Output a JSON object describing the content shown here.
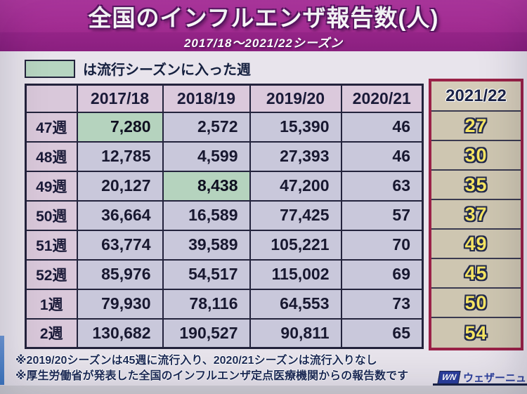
{
  "header": {
    "title": "全国のインフルエンザ報告数(人)",
    "subtitle": "2017/18〜2021/22シーズン"
  },
  "legend": {
    "label": "は流行シーズンに入った週",
    "swatch_color": "#b7d5c1"
  },
  "table": {
    "season_headers": [
      "2017/18",
      "2018/19",
      "2019/20",
      "2020/21"
    ],
    "current_season_header": "2021/22",
    "rows": [
      {
        "week": "47週",
        "values": [
          "7,280",
          "2,572",
          "15,390",
          "46"
        ],
        "current": "27",
        "highlight_col": 0
      },
      {
        "week": "48週",
        "values": [
          "12,785",
          "4,599",
          "27,393",
          "46"
        ],
        "current": "30",
        "highlight_col": null
      },
      {
        "week": "49週",
        "values": [
          "20,127",
          "8,438",
          "47,200",
          "63"
        ],
        "current": "35",
        "highlight_col": 1
      },
      {
        "week": "50週",
        "values": [
          "36,664",
          "16,589",
          "77,425",
          "57"
        ],
        "current": "37",
        "highlight_col": null
      },
      {
        "week": "51週",
        "values": [
          "63,774",
          "39,589",
          "105,221",
          "70"
        ],
        "current": "49",
        "highlight_col": null
      },
      {
        "week": "52週",
        "values": [
          "85,976",
          "54,517",
          "115,002",
          "69"
        ],
        "current": "45",
        "highlight_col": null
      },
      {
        "week": "1週",
        "values": [
          "79,930",
          "78,116",
          "64,553",
          "73"
        ],
        "current": "50",
        "highlight_col": null
      },
      {
        "week": "2週",
        "values": [
          "130,682",
          "190,527",
          "90,811",
          "65"
        ],
        "current": "54",
        "highlight_col": null
      }
    ]
  },
  "footnotes": [
    "※2019/20シーズンは45週に流行入り、2020/21シーズンは流行入りなし",
    "※厚生労働省が発表した全国のインフルエンザ定点医療機関からの報告数です"
  ],
  "logo": {
    "mark": "WN",
    "name": "ウェザーニュース"
  },
  "colors": {
    "title_magenta": "#a22b91",
    "subtitle_magenta": "#8b2080",
    "background": "#e8e4ec",
    "header_cell_pink": "#dbc9dc",
    "data_cell_lavender": "#c9c8db",
    "epidemic_green": "#b5d3be",
    "current_column_tan": "#cec6b1",
    "current_column_border_crimson": "#9a2147",
    "current_value_yellow": "#f5e463",
    "cell_border_navy": "#23233c",
    "footnote_navy": "#1d2b57",
    "logo_blue": "#2b3f9d"
  },
  "chart_data": {
    "type": "table",
    "title": "全国のインフルエンザ報告数(人)",
    "subtitle": "2017/18〜2021/22シーズン",
    "row_labels": [
      "47週",
      "48週",
      "49週",
      "50週",
      "51週",
      "52週",
      "1週",
      "2週"
    ],
    "columns": [
      "2017/18",
      "2018/19",
      "2019/20",
      "2020/21",
      "2021/22"
    ],
    "values": [
      [
        7280,
        2572,
        15390,
        46,
        27
      ],
      [
        12785,
        4599,
        27393,
        46,
        30
      ],
      [
        20127,
        8438,
        47200,
        63,
        35
      ],
      [
        36664,
        16589,
        77425,
        57,
        37
      ],
      [
        63774,
        39589,
        105221,
        70,
        49
      ],
      [
        85976,
        54517,
        115002,
        69,
        45
      ],
      [
        79930,
        78116,
        64553,
        73,
        50
      ],
      [
        130682,
        190527,
        90811,
        65,
        54
      ]
    ],
    "highlighted_cells": [
      {
        "row": "47週",
        "column": "2017/18",
        "meaning": "流行シーズンに入った週"
      },
      {
        "row": "49週",
        "column": "2018/19",
        "meaning": "流行シーズンに入った週"
      }
    ]
  }
}
